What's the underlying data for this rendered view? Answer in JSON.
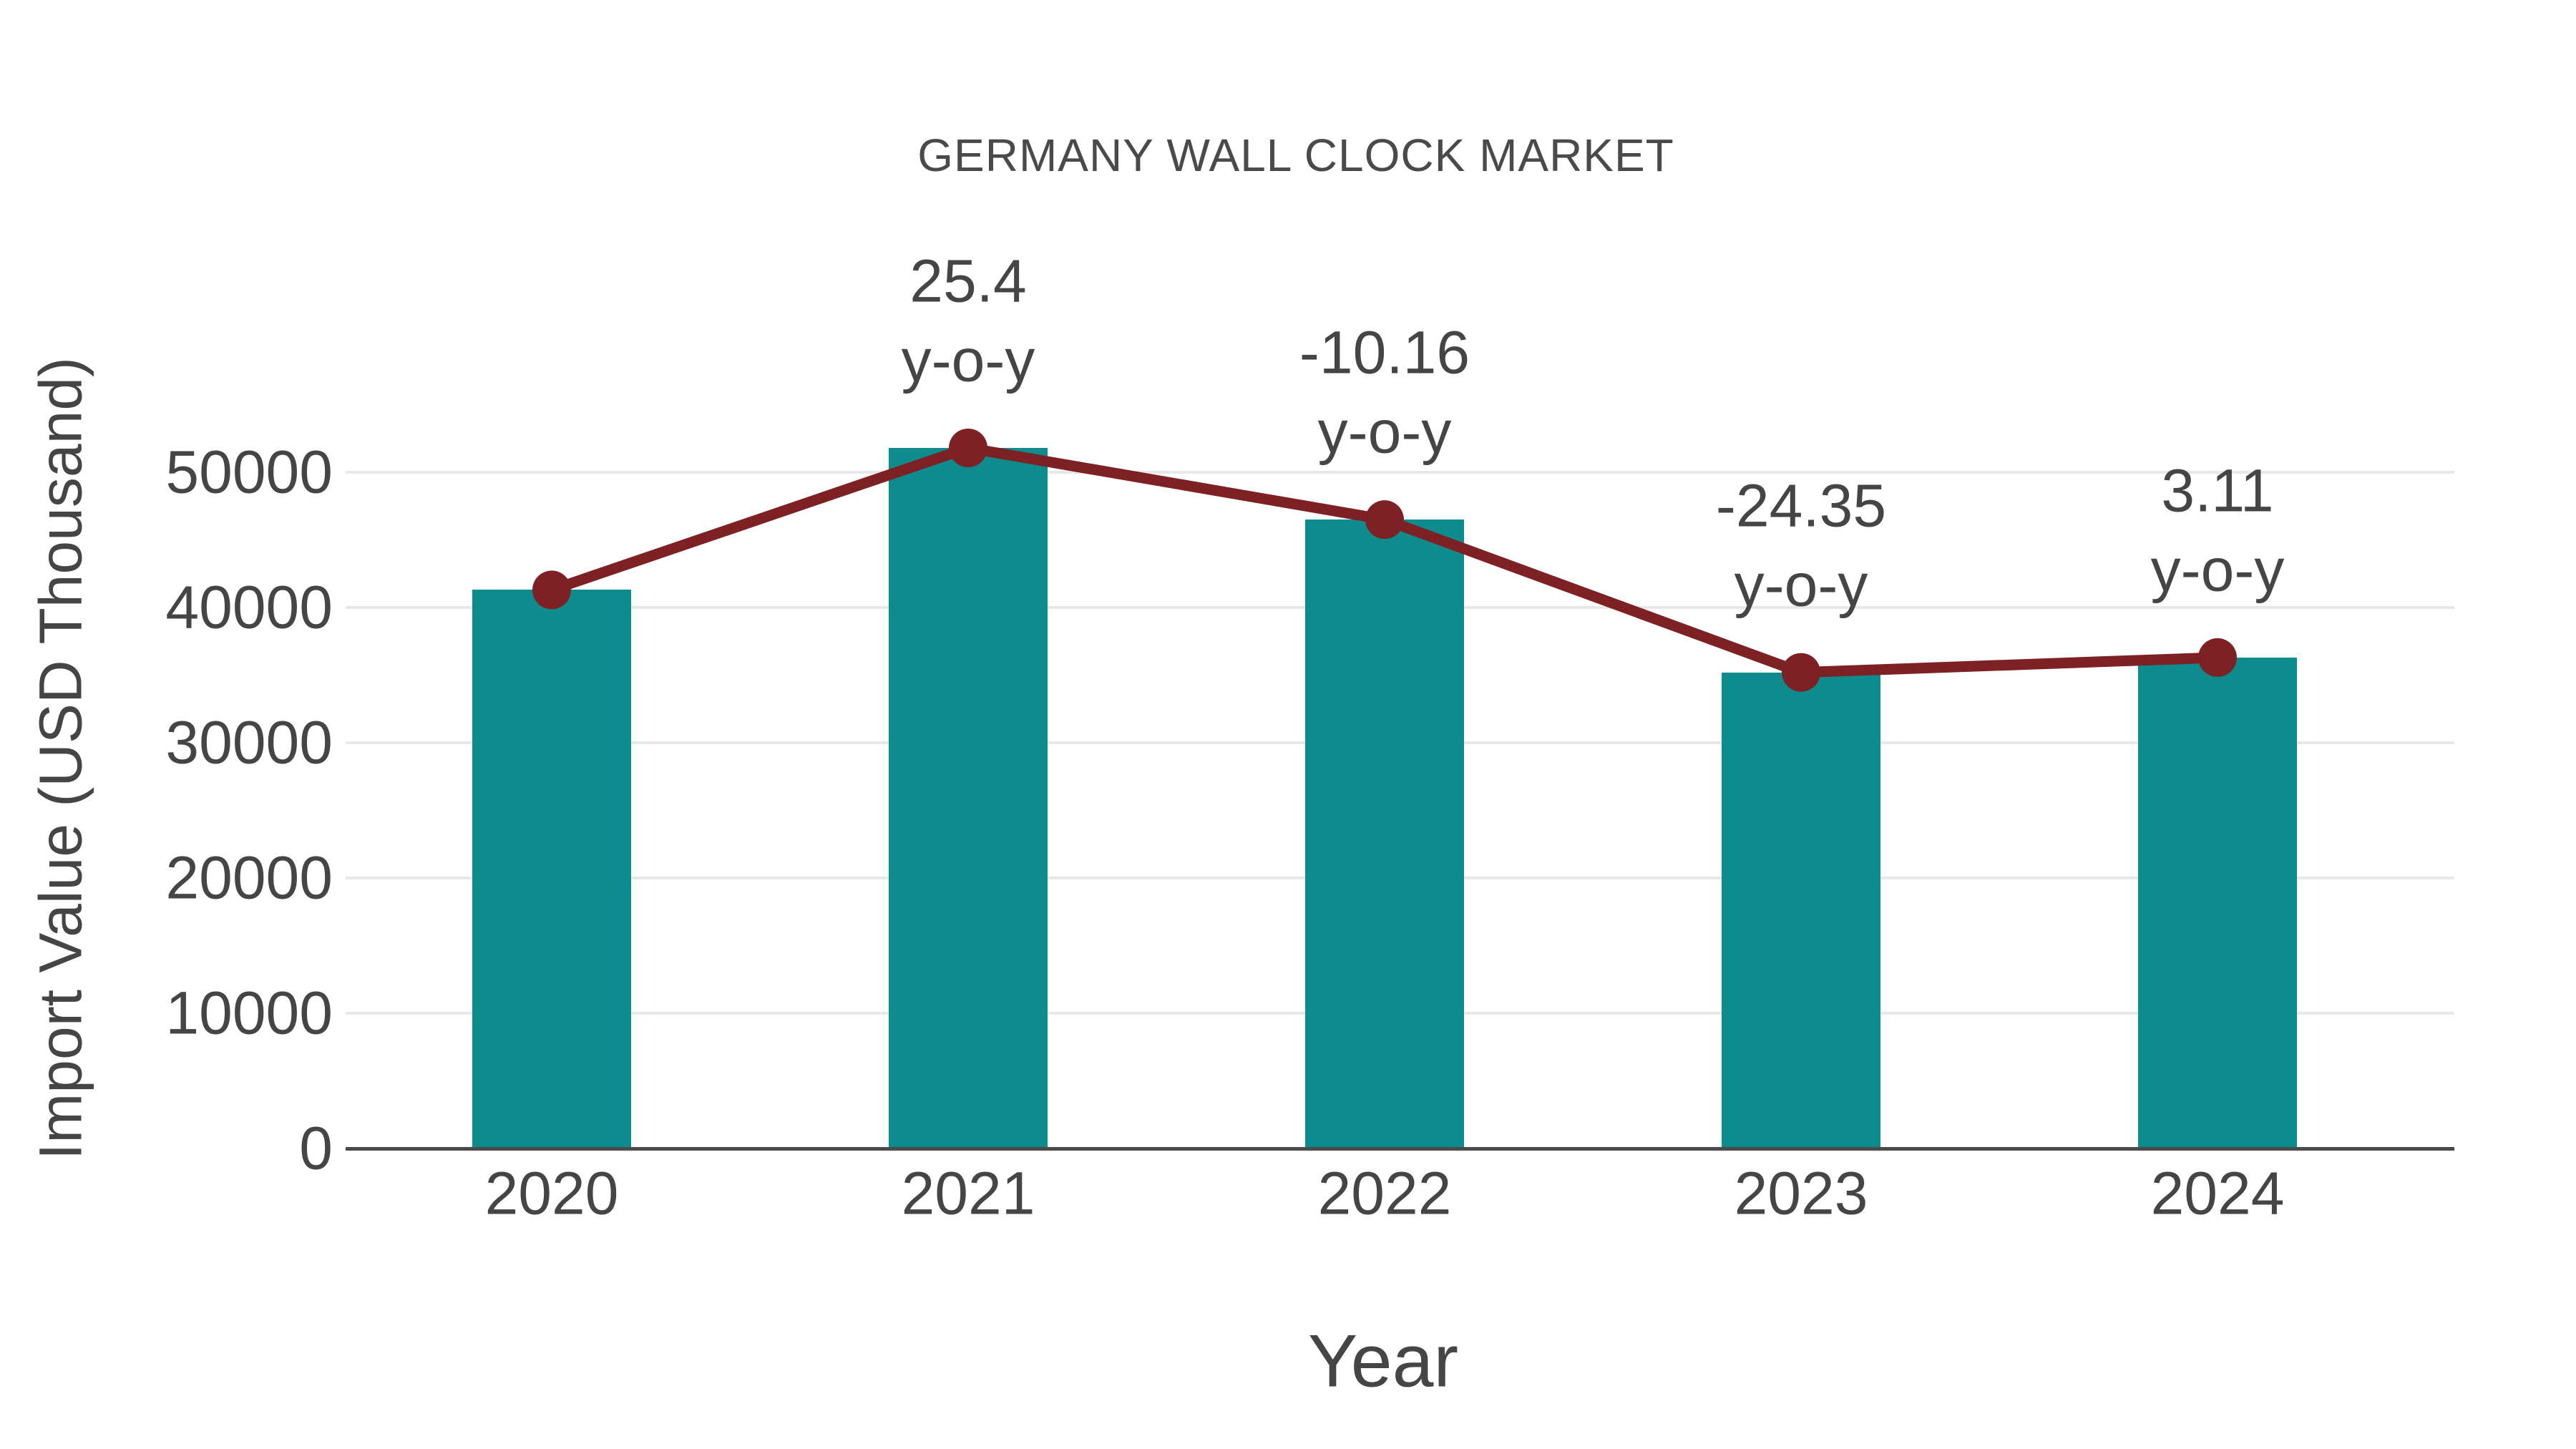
{
  "chart_data": {
    "type": "bar",
    "title": "GERMANY WALL CLOCK MARKET",
    "xlabel": "Year",
    "ylabel": "Import Value (USD Thousand)",
    "categories": [
      "2020",
      "2021",
      "2022",
      "2023",
      "2024"
    ],
    "series": [
      {
        "name": "Import Value",
        "type": "bar",
        "values": [
          41300,
          51800,
          46500,
          35200,
          36300
        ]
      },
      {
        "name": "Import Value trend",
        "type": "line",
        "values": [
          41300,
          51800,
          46500,
          35200,
          36300
        ]
      }
    ],
    "annotations": [
      {
        "category": "2021",
        "line1": "25.4",
        "line2": "y-o-y"
      },
      {
        "category": "2022",
        "line1": "-10.16",
        "line2": "y-o-y"
      },
      {
        "category": "2023",
        "line1": "-24.35",
        "line2": "y-o-y"
      },
      {
        "category": "2024",
        "line1": "3.11",
        "line2": "y-o-y"
      }
    ],
    "yticks": [
      0,
      10000,
      20000,
      30000,
      40000,
      50000
    ],
    "ylim": [
      0,
      55000
    ],
    "grid": "horizontal",
    "legend": "none",
    "colors": {
      "bar": "#0e8b8c",
      "line": "#7d2125",
      "marker": "#7d2125",
      "grid": "#e8e8e8",
      "axis": "#4a4a4a",
      "text": "#454545"
    }
  }
}
